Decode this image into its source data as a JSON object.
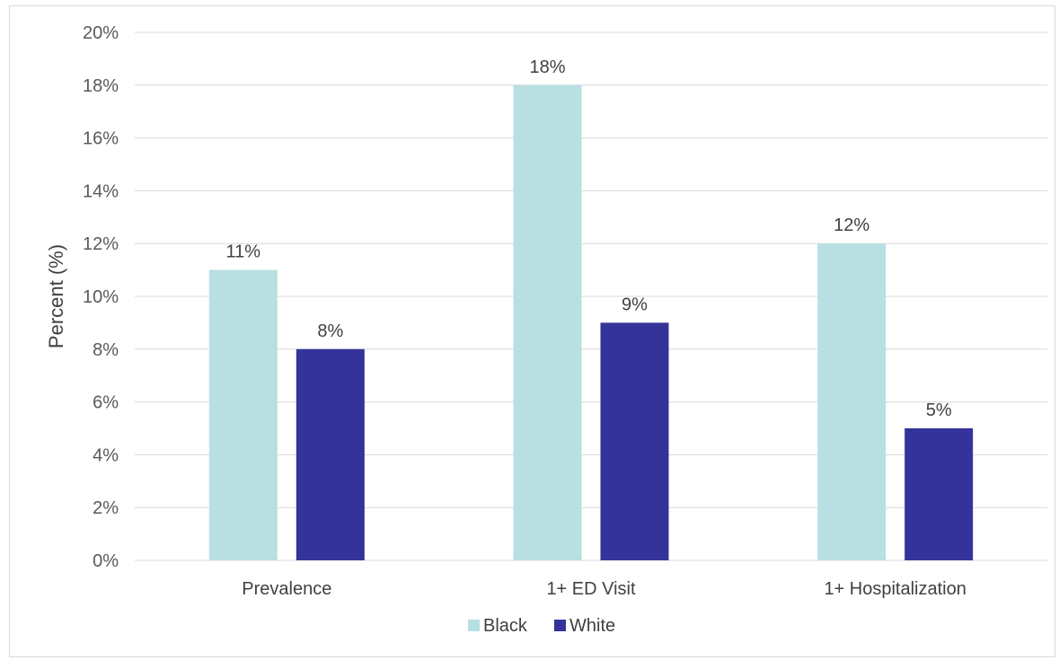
{
  "chart_data": {
    "type": "bar",
    "categories": [
      "Prevalence",
      "1+ ED Visit",
      "1+ Hospitalization"
    ],
    "series": [
      {
        "name": "Black",
        "values": [
          11,
          18,
          12
        ],
        "color": "#b8dfe2",
        "labels": [
          "11%",
          "18%",
          "12%"
        ]
      },
      {
        "name": "White",
        "values": [
          8,
          9,
          5
        ],
        "color": "#343399",
        "labels": [
          "8%",
          "9%",
          "5%"
        ]
      }
    ],
    "yticks": [
      0,
      2,
      4,
      6,
      8,
      10,
      12,
      14,
      16,
      18,
      20
    ],
    "ytick_labels": [
      "0%",
      "2%",
      "4%",
      "6%",
      "8%",
      "10%",
      "12%",
      "14%",
      "16%",
      "18%",
      "20%"
    ],
    "ylabel": "Percent (%)",
    "xlabel": "",
    "title": "",
    "ylim": [
      0,
      20
    ],
    "grid": true,
    "legend_position": "bottom"
  }
}
